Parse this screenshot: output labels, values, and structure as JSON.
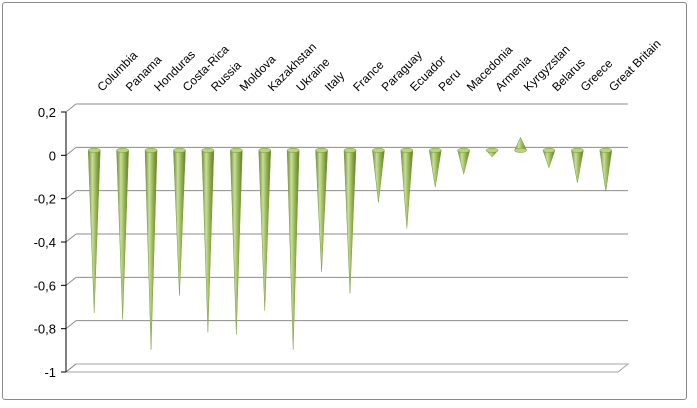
{
  "chart_data": {
    "type": "bar",
    "style": "3d-cone",
    "categories": [
      "Columbia",
      "Panama",
      "Honduras",
      "Costa-Rica",
      "Russia",
      "Moldova",
      "Kazakhstan",
      "Ukraine",
      "Italy",
      "France",
      "Paraguay",
      "Ecuador",
      "Peru",
      "Macedonia",
      "Armenia",
      "Kyrgyzstan",
      "Belarus",
      "Greece",
      "Great Britain"
    ],
    "values": [
      -0.75,
      -0.78,
      -0.92,
      -0.67,
      -0.84,
      -0.85,
      -0.74,
      -0.92,
      -0.56,
      -0.66,
      -0.24,
      -0.36,
      -0.17,
      -0.11,
      -0.03,
      0.06,
      -0.08,
      -0.15,
      -0.19
    ],
    "ylim": [
      -1,
      0.2
    ],
    "yticks": [
      "0,2",
      "0",
      "-0,2",
      "-0,4",
      "-0,6",
      "-0,8",
      "-1"
    ],
    "title": "",
    "xlabel": "",
    "ylabel": "",
    "grid": true,
    "legend": "none",
    "colors": {
      "cone_light": "#c9df9a",
      "cone_mid": "#9bbb59",
      "cone_dark": "#6f8c33",
      "grid": "#8c8c8c",
      "axis": "#000000"
    }
  }
}
